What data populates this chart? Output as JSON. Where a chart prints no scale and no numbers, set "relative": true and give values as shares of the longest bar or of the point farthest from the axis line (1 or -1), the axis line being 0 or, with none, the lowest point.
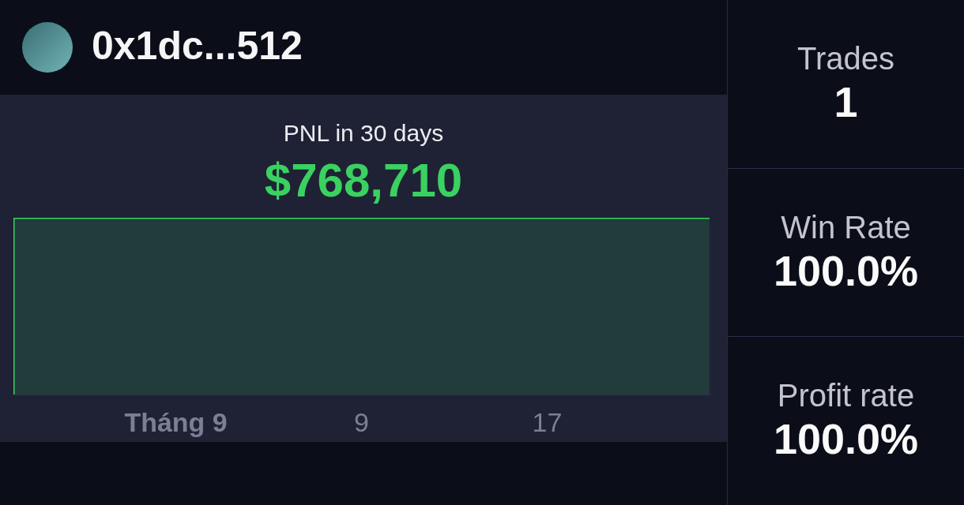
{
  "chart_data": [
    {
      "type": "other",
      "title": "0x1dc...512"
    },
    {
      "type": "area",
      "title": "PNL in 30 days",
      "subtitle": "$768,710",
      "x": [
        "--08-25",
        "--08-25",
        "--09-24"
      ],
      "values": [
        0,
        1,
        1
      ],
      "color": "#3ad160",
      "relative": true,
      "xlim": [
        "--08-25",
        "--09-24"
      ],
      "xticks": [
        {
          "value": "--09-01",
          "label": "Tháng 9"
        },
        {
          "value": "--09-09",
          "label": "9"
        },
        {
          "value": "--09-17",
          "label": "17"
        }
      ],
      "tick_labels": "x"
    },
    {
      "type": "other",
      "annotations": [
        "Trades",
        "1",
        "Win Rate",
        "100.0%",
        "Profit rate",
        "100.0%"
      ]
    }
  ]
}
